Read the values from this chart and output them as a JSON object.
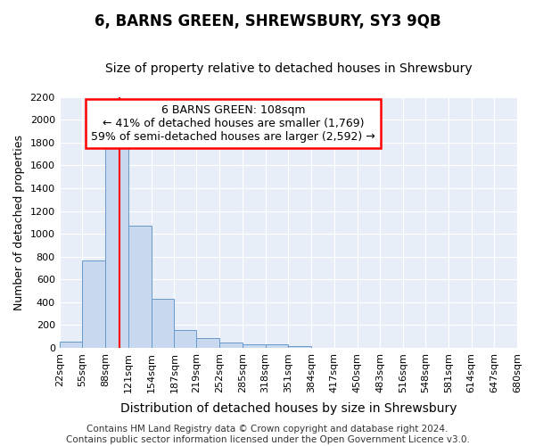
{
  "title": "6, BARNS GREEN, SHREWSBURY, SY3 9QB",
  "subtitle": "Size of property relative to detached houses in Shrewsbury",
  "xlabel": "Distribution of detached houses by size in Shrewsbury",
  "ylabel": "Number of detached properties",
  "bin_edges": [
    22,
    55,
    88,
    121,
    154,
    187,
    219,
    252,
    285,
    318,
    351,
    384,
    417,
    450,
    483,
    516,
    548,
    581,
    614,
    647,
    680
  ],
  "bar_heights": [
    55,
    770,
    1750,
    1070,
    430,
    155,
    85,
    45,
    35,
    28,
    18,
    0,
    0,
    0,
    0,
    0,
    0,
    0,
    0,
    0
  ],
  "bar_color": "#c8d8ee",
  "bar_edge_color": "#6699cc",
  "vline_x": 108,
  "vline_color": "red",
  "annotation_text": "6 BARNS GREEN: 108sqm\n← 41% of detached houses are smaller (1,769)\n59% of semi-detached houses are larger (2,592) →",
  "annotation_box_color": "white",
  "annotation_box_edge_color": "red",
  "ylim": [
    0,
    2200
  ],
  "yticks": [
    0,
    200,
    400,
    600,
    800,
    1000,
    1200,
    1400,
    1600,
    1800,
    2000,
    2200
  ],
  "tick_labels": [
    "22sqm",
    "55sqm",
    "88sqm",
    "121sqm",
    "154sqm",
    "187sqm",
    "219sqm",
    "252sqm",
    "285sqm",
    "318sqm",
    "351sqm",
    "384sqm",
    "417sqm",
    "450sqm",
    "483sqm",
    "516sqm",
    "548sqm",
    "581sqm",
    "614sqm",
    "647sqm",
    "680sqm"
  ],
  "footer": "Contains HM Land Registry data © Crown copyright and database right 2024.\nContains public sector information licensed under the Open Government Licence v3.0.",
  "background_color": "#ffffff",
  "plot_bg_color": "#e8eef8",
  "grid_color": "#ffffff",
  "title_fontsize": 12,
  "subtitle_fontsize": 10,
  "xlabel_fontsize": 10,
  "ylabel_fontsize": 9,
  "tick_fontsize": 8,
  "footer_fontsize": 7.5,
  "annotation_fontsize": 9
}
